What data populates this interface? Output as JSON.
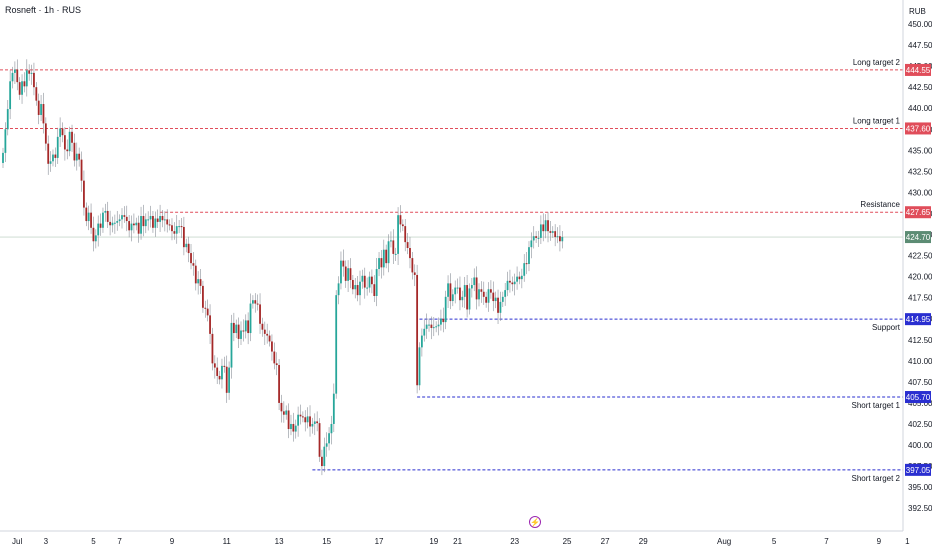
{
  "header": {
    "title": "Rosneft · 1h · RUS",
    "currency": "RUB"
  },
  "colors": {
    "up": "#26a69a",
    "down": "#a52828",
    "level_red": "#e04d5a",
    "level_blue": "#2a2fd0",
    "last_price": "#5c8c74",
    "grid": "#e0e3eb",
    "axis_text": "#131722",
    "event": "#9c27b0"
  },
  "chart_data": {
    "type": "candlestick",
    "title": "Rosneft · 1h · RUS",
    "y_axis": {
      "currency": "RUB",
      "ylim": [
        390.5,
        452.5
      ],
      "ticks": [
        450.0,
        447.5,
        445.0,
        442.5,
        440.0,
        437.5,
        435.0,
        432.5,
        430.0,
        427.5,
        425.0,
        422.5,
        420.0,
        417.5,
        415.0,
        412.5,
        410.0,
        407.5,
        405.0,
        402.5,
        400.0,
        397.5,
        395.0,
        392.5
      ]
    },
    "x_axis": {
      "ticks": [
        {
          "label": "Jul",
          "bar": 0
        },
        {
          "label": "3",
          "bar": 18
        },
        {
          "label": "5",
          "bar": 38
        },
        {
          "label": "7",
          "bar": 49
        },
        {
          "label": "9",
          "bar": 71
        },
        {
          "label": "11",
          "bar": 94
        },
        {
          "label": "13",
          "bar": 116
        },
        {
          "label": "15",
          "bar": 136
        },
        {
          "label": "17",
          "bar": 158
        },
        {
          "label": "19",
          "bar": 181
        },
        {
          "label": "21",
          "bar": 191
        },
        {
          "label": "23",
          "bar": 215
        },
        {
          "label": "25",
          "bar": 237
        },
        {
          "label": "27",
          "bar": 253
        },
        {
          "label": "29",
          "bar": 269
        },
        {
          "label": "Aug",
          "bar": 303
        },
        {
          "label": "5",
          "bar": 324
        },
        {
          "label": "7",
          "bar": 346
        },
        {
          "label": "9",
          "bar": 368
        },
        {
          "label": "1",
          "bar": 380
        }
      ]
    },
    "levels": [
      {
        "name": "Long target 2",
        "price": 444.55,
        "label": "444.55",
        "color": "red"
      },
      {
        "name": "Long target 1",
        "price": 437.6,
        "label": "437.60",
        "color": "red"
      },
      {
        "name": "Resistance",
        "price": 427.65,
        "label": "427.65",
        "color": "red",
        "start_bar": 66
      },
      {
        "name": "Support",
        "price": 414.95,
        "label": "414.95",
        "color": "blue",
        "start_bar": 175
      },
      {
        "name": "Short target 1",
        "price": 405.7,
        "label": "405.70",
        "color": "blue",
        "start_bar": 174
      },
      {
        "name": "Short target 2",
        "price": 397.05,
        "label": "397.05",
        "color": "blue",
        "start_bar": 130
      }
    ],
    "last_price": {
      "price": 424.7,
      "label": "424.70"
    },
    "closes": [
      434.7,
      437.5,
      439.9,
      443.2,
      444.2,
      444.6,
      443.1,
      441.6,
      443.2,
      442.6,
      444.5,
      444.1,
      444.2,
      442.5,
      440.9,
      439.2,
      440.5,
      438.2,
      435.8,
      433.4,
      433.7,
      434.5,
      434.1,
      436.6,
      437.6,
      436.8,
      435.1,
      434.9,
      437.2,
      435.9,
      433.8,
      434.6,
      433.9,
      431.4,
      428.2,
      426.6,
      427.6,
      425.8,
      424.2,
      424.9,
      426.3,
      425.8,
      427.6,
      427.8,
      426.5,
      426.1,
      426.4,
      426.4,
      426.6,
      426.8,
      427.3,
      427.1,
      426.6,
      425.5,
      426.3,
      426.1,
      426.4,
      425.1,
      427.2,
      426.0,
      426.8,
      426.8,
      427.2,
      425.8,
      426.9,
      426.5,
      427.2,
      426.7,
      426.8,
      426.2,
      426.1,
      425.4,
      425.1,
      426.0,
      426.0,
      425.9,
      423.5,
      423.9,
      422.8,
      421.6,
      421.3,
      419.2,
      419.7,
      418.9,
      416.3,
      416.2,
      415.4,
      413.2,
      409.7,
      409.2,
      408.2,
      407.8,
      409.4,
      409.3,
      406.2,
      409.2,
      414.5,
      413.3,
      414.3,
      412.6,
      413.6,
      413.5,
      414.8,
      413.3,
      416.8,
      417.2,
      416.8,
      416.7,
      414.4,
      413.7,
      413.2,
      413.0,
      412.3,
      411.1,
      409.7,
      409.5,
      405.0,
      404.0,
      403.6,
      404.1,
      401.9,
      402.5,
      401.6,
      402.3,
      403.6,
      403.4,
      403.3,
      402.7,
      403.4,
      402.2,
      402.5,
      402.8,
      402.6,
      398.6,
      397.5,
      399.8,
      400.2,
      401.4,
      402.5,
      406.1,
      417.8,
      419.2,
      421.9,
      421.2,
      419.5,
      421.0,
      419.6,
      418.5,
      419.0,
      417.8,
      419.4,
      420.1,
      418.7,
      418.7,
      420.0,
      419.1,
      417.7,
      420.9,
      422.2,
      421.1,
      423.2,
      421.6,
      424.2,
      424.3,
      422.7,
      422.7,
      427.3,
      426.2,
      426.0,
      424.1,
      423.4,
      422.2,
      420.5,
      420.2,
      407.1,
      411.6,
      413.0,
      413.8,
      414.3,
      414.3,
      413.9,
      414.0,
      414.1,
      414.3,
      415.0,
      414.6,
      417.6,
      419.2,
      417.1,
      417.9,
      418.7,
      418.7,
      417.2,
      417.6,
      419.0,
      416.1,
      418.6,
      419.0,
      419.9,
      417.3,
      418.5,
      418.2,
      417.6,
      416.9,
      418.5,
      418.1,
      417.1,
      417.5,
      415.7,
      417.0,
      417.6,
      418.4,
      419.5,
      419.3,
      419.1,
      419.4,
      420.0,
      419.7,
      420.1,
      421.6,
      421.5,
      423.5,
      424.3,
      424.8,
      424.6,
      424.6,
      426.2,
      425.4,
      426.7,
      425.4,
      425.2,
      425.4,
      424.7,
      424.8,
      424.2,
      424.7
    ]
  }
}
